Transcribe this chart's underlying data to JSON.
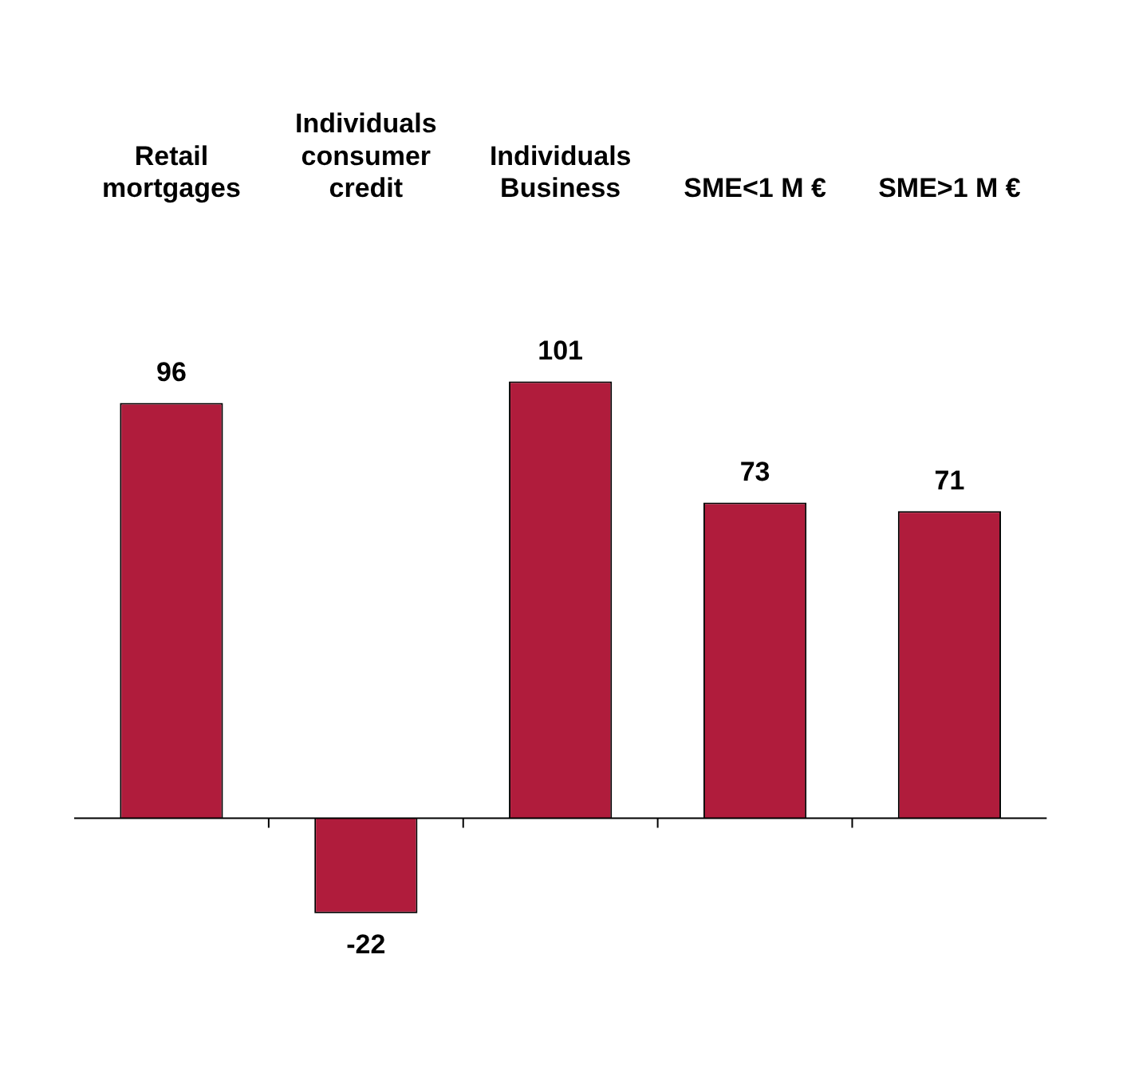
{
  "chart_data": {
    "type": "bar",
    "categories": [
      "Retail\nmortgages",
      "Individuals\nconsumer\ncredit",
      "Individuals\nBusiness",
      "SME<1 M €",
      "SME>1 M €"
    ],
    "values": [
      96,
      -22,
      101,
      73,
      71
    ],
    "color": "#b01c3c",
    "data_labels": true,
    "grid": false,
    "legend": false
  }
}
